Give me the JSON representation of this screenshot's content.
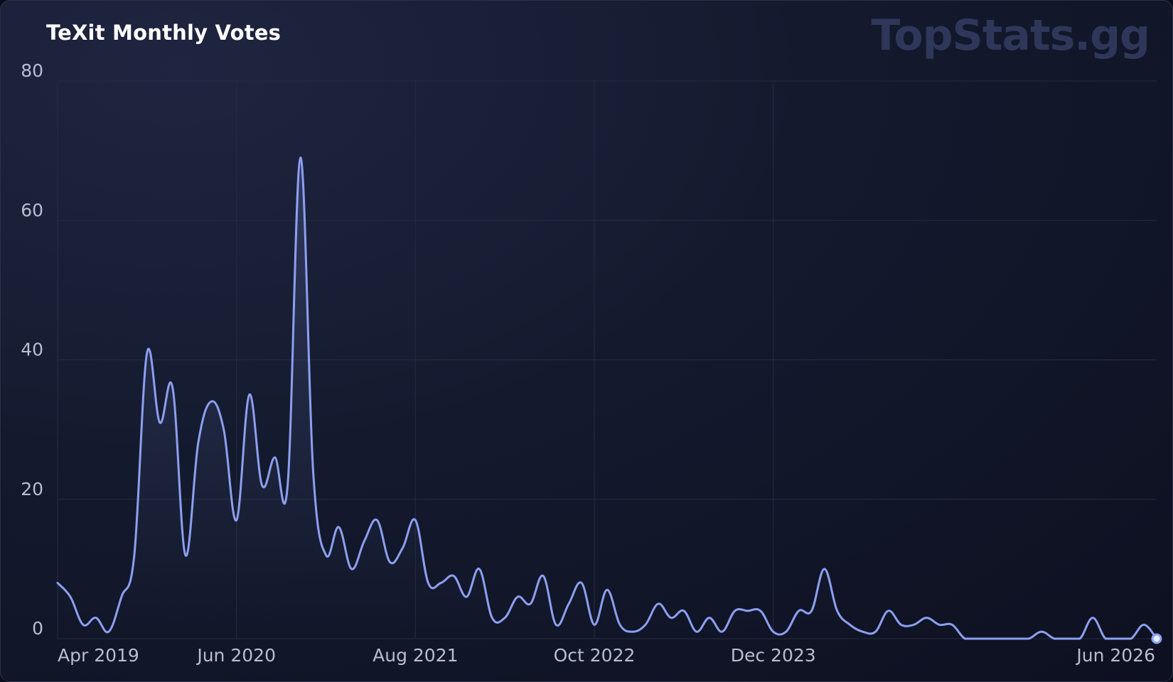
{
  "chart_title": "TeXit Monthly Votes",
  "brand": "TopStats.gg",
  "colors": {
    "line": "#8c9ff0",
    "grid": "#252b40",
    "text": "#b9bdd0"
  },
  "chart_data": {
    "type": "area",
    "title": "TeXit Monthly Votes",
    "xlabel": "",
    "ylabel": "",
    "ylim": [
      0,
      80
    ],
    "yticks": [
      0,
      20,
      40,
      60,
      80
    ],
    "xticks": [
      "Apr 2019",
      "Jun 2020",
      "Aug 2021",
      "Oct 2022",
      "Dec 2023",
      "Jun 2026"
    ],
    "grid": true,
    "legend": "none",
    "x": [
      "2019-04",
      "2019-05",
      "2019-06",
      "2019-07",
      "2019-08",
      "2019-09",
      "2019-10",
      "2019-11",
      "2019-12",
      "2020-01",
      "2020-02",
      "2020-03",
      "2020-04",
      "2020-05",
      "2020-06",
      "2020-07",
      "2020-08",
      "2020-09",
      "2020-10",
      "2020-11",
      "2020-12",
      "2021-01",
      "2021-02",
      "2021-03",
      "2021-04",
      "2021-05",
      "2021-06",
      "2021-07",
      "2021-08",
      "2021-09",
      "2021-10",
      "2021-11",
      "2021-12",
      "2022-01",
      "2022-02",
      "2022-03",
      "2022-04",
      "2022-05",
      "2022-06",
      "2022-07",
      "2022-08",
      "2022-09",
      "2022-10",
      "2022-11",
      "2022-12",
      "2023-01",
      "2023-02",
      "2023-03",
      "2023-04",
      "2023-05",
      "2023-06",
      "2023-07",
      "2023-08",
      "2023-09",
      "2023-10",
      "2023-11",
      "2023-12",
      "2024-01",
      "2024-02",
      "2024-03",
      "2024-04",
      "2024-05",
      "2024-06",
      "2024-07",
      "2024-08",
      "2024-09",
      "2024-10",
      "2024-11",
      "2024-12",
      "2025-01",
      "2025-02",
      "2025-03",
      "2025-04",
      "2025-05",
      "2025-06",
      "2025-07",
      "2025-08",
      "2025-09",
      "2025-10",
      "2025-11",
      "2025-12",
      "2026-01",
      "2026-02",
      "2026-03",
      "2026-04",
      "2026-05",
      "2026-06"
    ],
    "series": [
      {
        "values": [
          8,
          6,
          2,
          3,
          1,
          6,
          12,
          41,
          31,
          36,
          12,
          28,
          34,
          30,
          17,
          35,
          22,
          26,
          22,
          69,
          24,
          12,
          16,
          10,
          14,
          17,
          11,
          13,
          17,
          8,
          8,
          9,
          6,
          10,
          3,
          3,
          6,
          5,
          9,
          2,
          5,
          8,
          2,
          7,
          2,
          1,
          2,
          5,
          3,
          4,
          1,
          3,
          1,
          4,
          4,
          4,
          1,
          1,
          4,
          4,
          10,
          4,
          2,
          1,
          1,
          4,
          2,
          2,
          3,
          2,
          2,
          0,
          0,
          0,
          0,
          0,
          0,
          1,
          0,
          0,
          0,
          3,
          0,
          0,
          0,
          2,
          0
        ]
      }
    ]
  }
}
